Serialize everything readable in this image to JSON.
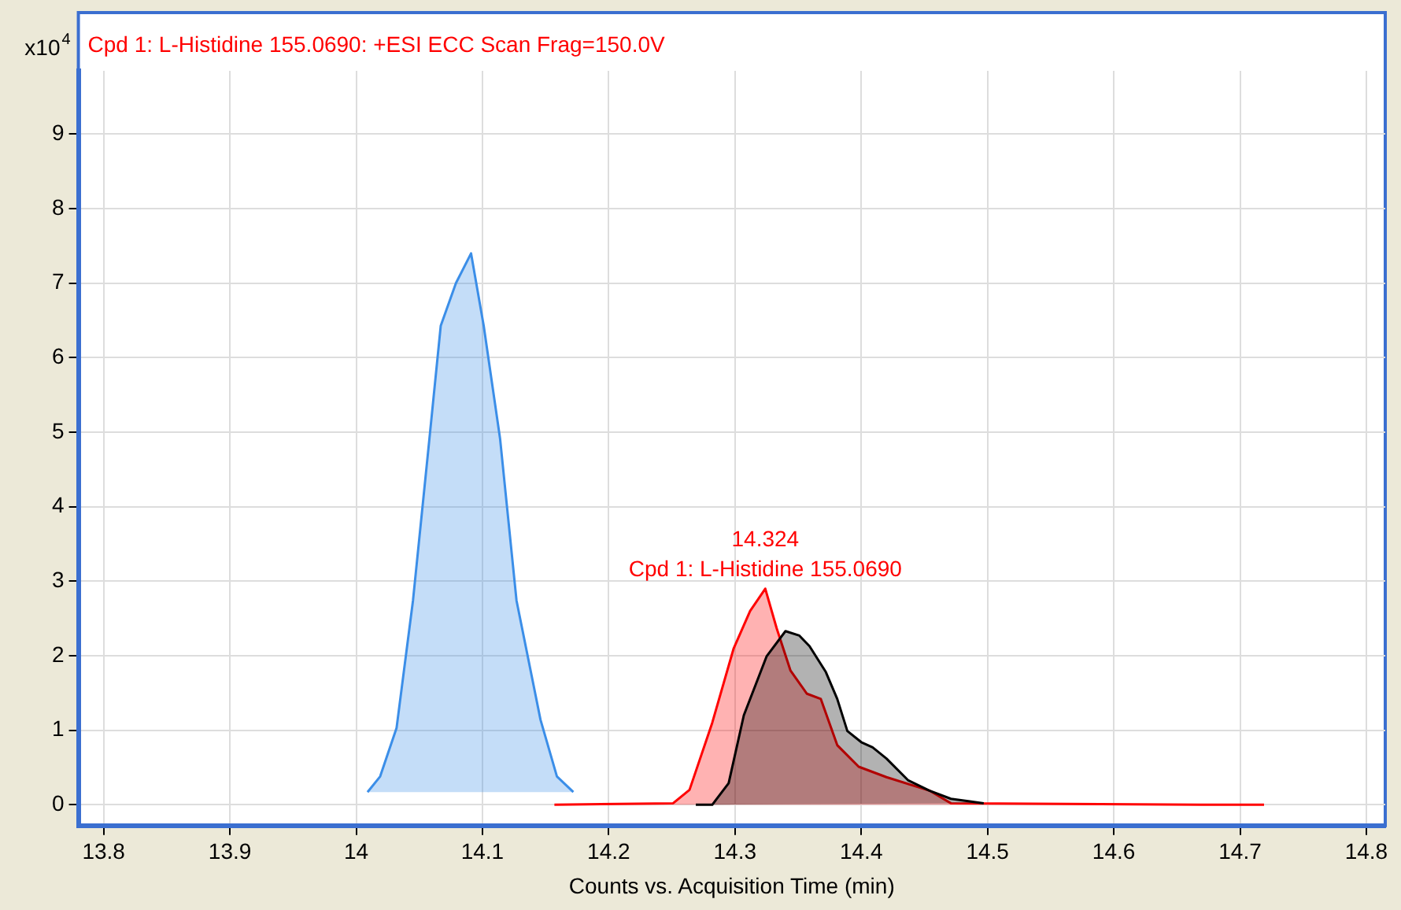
{
  "chart_data": {
    "type": "area",
    "title": "Cpd 1: L-Histidine 155.0690: +ESI ECC Scan Frag=150.0V",
    "xlabel": "Counts vs. Acquisition Time (min)",
    "ylabel": "x10$^{4}$",
    "series": [
      {
        "color": "#3b8ee8",
        "x": [
          14.009,
          14.019,
          14.032,
          14.045,
          14.058,
          14.067,
          14.079,
          14.091,
          14.101,
          14.114,
          14.127,
          14.146,
          14.159,
          14.172
        ],
        "values": [
          0.17,
          0.38,
          1.03,
          2.74,
          4.91,
          6.43,
          7.0,
          7.4,
          6.43,
          4.91,
          2.74,
          1.14,
          0.38,
          0.17
        ]
      },
      {
        "color": "#000000",
        "x": [
          14.269,
          14.282,
          14.295,
          14.307,
          14.325,
          14.34,
          14.351,
          14.359,
          14.372,
          14.381,
          14.389,
          14.4,
          14.409,
          14.42,
          14.437,
          14.454,
          14.471,
          14.497
        ],
        "values": [
          0,
          0,
          0.29,
          1.2,
          1.99,
          2.33,
          2.27,
          2.13,
          1.78,
          1.42,
          0.99,
          0.84,
          0.77,
          0.62,
          0.33,
          0.19,
          0.08,
          0.02
        ]
      },
      {
        "color": "#ff0000",
        "x": [
          14.157,
          14.251,
          14.264,
          14.282,
          14.299,
          14.312,
          14.324,
          14.333,
          14.344,
          14.357,
          14.368,
          14.381,
          14.398,
          14.42,
          14.454,
          14.471,
          14.67,
          14.719
        ],
        "values": [
          0,
          0.02,
          0.2,
          1.1,
          2.1,
          2.6,
          2.9,
          2.37,
          1.8,
          1.49,
          1.42,
          0.8,
          0.51,
          0.37,
          0.19,
          0.02,
          0,
          0
        ]
      }
    ],
    "annotations": [
      {
        "text": "14.324\nCpd 1: L-Histidine 155.0690",
        "x": 14.324,
        "y": 2.9
      }
    ],
    "xlim": [
      13.78,
      14.815
    ],
    "xticks": [
      13.8,
      13.9,
      14,
      14.1,
      14.2,
      14.3,
      14.4,
      14.5,
      14.6,
      14.7,
      14.8
    ],
    "ylim": [
      -0.28,
      9.85
    ],
    "yticks": [
      0,
      1,
      2,
      3,
      4,
      5,
      6,
      7,
      8,
      9
    ],
    "grid": true,
    "legend": false
  }
}
